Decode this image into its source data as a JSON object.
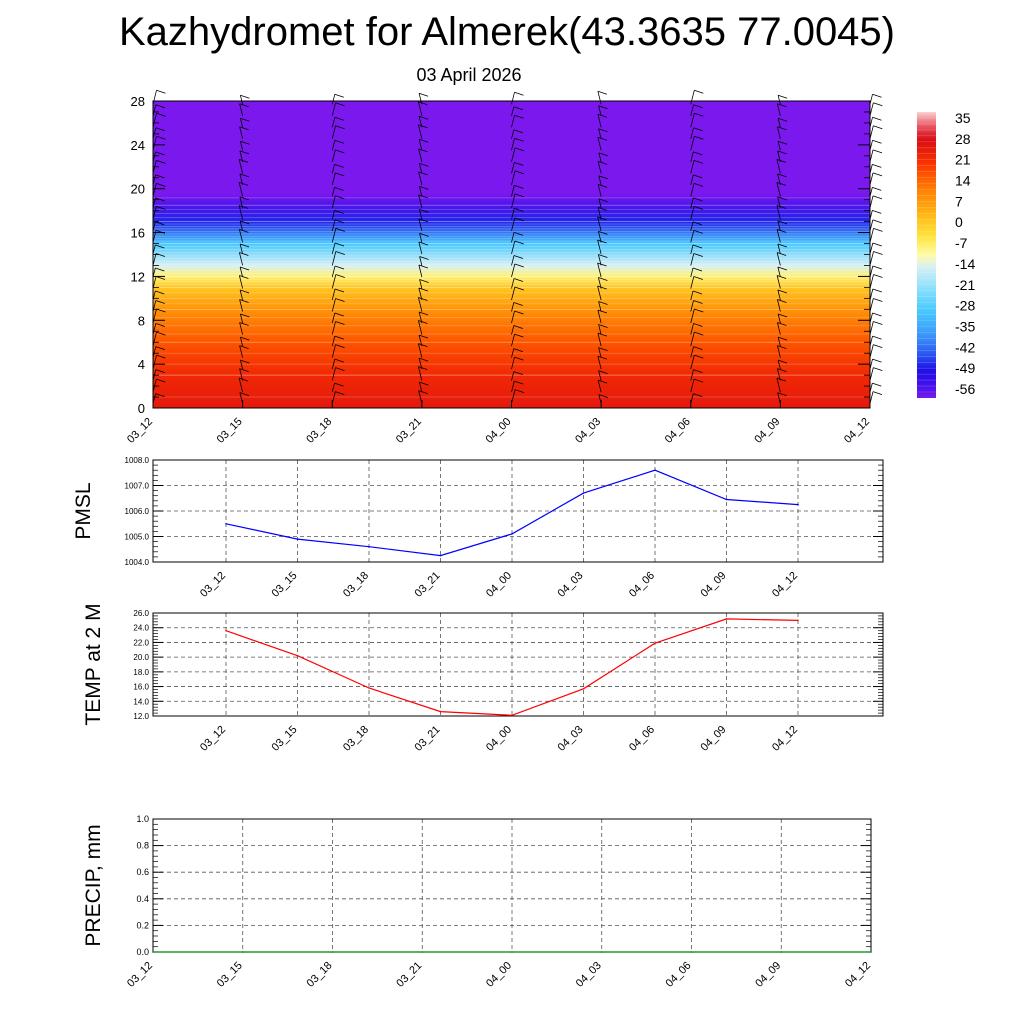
{
  "title": "Kazhydromet for Almerek(43.3635 77.0045)",
  "subtitle": "03 April 2026",
  "time_labels": [
    "03_12",
    "03_15",
    "03_18",
    "03_21",
    "04_00",
    "04_03",
    "04_06",
    "04_09",
    "04_12"
  ],
  "chart_data": [
    {
      "id": "cross-section",
      "type": "heatmap",
      "title": "",
      "xlabel": "",
      "ylabel": "",
      "x": [
        "03_12",
        "03_15",
        "03_18",
        "03_21",
        "04_00",
        "04_03",
        "04_06",
        "04_09",
        "04_12"
      ],
      "ylim": [
        0,
        28
      ],
      "yticks": [
        0,
        4,
        8,
        12,
        16,
        20,
        24,
        28
      ],
      "colorbar": {
        "labels": [
          "35",
          "28",
          "21",
          "14",
          "7",
          "0",
          "-7",
          "-14",
          "-21",
          "-28",
          "-35",
          "-42",
          "-49",
          "-56"
        ],
        "range": [
          -59,
          37
        ]
      },
      "temperature_profile": [
        {
          "height": 0,
          "value": 25
        },
        {
          "height": 3,
          "value": 22
        },
        {
          "height": 6,
          "value": 16
        },
        {
          "height": 9,
          "value": 8
        },
        {
          "height": 11,
          "value": 0
        },
        {
          "height": 12,
          "value": -8
        },
        {
          "height": 13,
          "value": -15
        },
        {
          "height": 15,
          "value": -30
        },
        {
          "height": 17,
          "value": -48
        },
        {
          "height": 18.5,
          "value": -56
        },
        {
          "height": 19.5,
          "value": -59
        },
        {
          "height": 28,
          "value": -59
        }
      ],
      "wind_barbs": "at every time step"
    },
    {
      "id": "pmsl",
      "type": "line",
      "ylabel": "PMSL",
      "x": [
        "03_12",
        "03_15",
        "03_18",
        "03_21",
        "04_00",
        "04_03",
        "04_06",
        "04_09",
        "04_12"
      ],
      "ylim": [
        1004.0,
        1008.0
      ],
      "ytick_labels": [
        "1004.0",
        "1005.0",
        "1006.0",
        "1007.0",
        "1008.0"
      ],
      "series": [
        {
          "name": "PMSL",
          "color": "#0000ff",
          "values": [
            1005.5,
            1004.9,
            1004.6,
            1004.25,
            1005.1,
            1006.7,
            1007.6,
            1006.45,
            1006.25
          ]
        }
      ]
    },
    {
      "id": "temp2m",
      "type": "line",
      "ylabel": "TEMP at 2 M",
      "x": [
        "03_12",
        "03_15",
        "03_18",
        "03_21",
        "04_00",
        "04_03",
        "04_06",
        "04_09",
        "04_12"
      ],
      "ylim": [
        12.0,
        26.0
      ],
      "ytick_labels": [
        "12.0",
        "14.0",
        "16.0",
        "18.0",
        "20.0",
        "22.0",
        "24.0",
        "26.0"
      ],
      "series": [
        {
          "name": "TEMP at 2 M",
          "color": "#ff0000",
          "values": [
            23.6,
            20.2,
            15.8,
            12.6,
            12.1,
            15.7,
            21.9,
            25.2,
            25.0
          ]
        }
      ]
    },
    {
      "id": "precip",
      "type": "line",
      "ylabel": "PRECIP, mm",
      "x": [
        "03_12",
        "03_15",
        "03_18",
        "03_21",
        "04_00",
        "04_03",
        "04_06",
        "04_09",
        "04_12"
      ],
      "ylim": [
        0.0,
        1.0
      ],
      "ytick_labels": [
        "0.0",
        "0.2",
        "0.4",
        "0.6",
        "0.8",
        "1.0"
      ],
      "series": [
        {
          "name": "PRECIP",
          "color": "#008000",
          "values": [
            0,
            0,
            0,
            0,
            0,
            0,
            0,
            0,
            0
          ]
        }
      ]
    }
  ]
}
